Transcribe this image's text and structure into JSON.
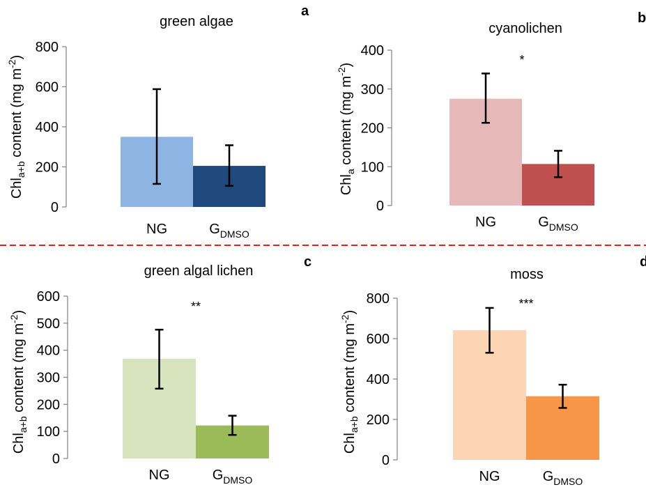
{
  "separator_color": "#e02020",
  "chart_data": [
    {
      "panel": "a",
      "type": "bar",
      "title": "green algae",
      "ylabel": "Chla+b content (mg m-2)",
      "ylabel_parts": {
        "base": "Chl",
        "sub": "a+b",
        "mid": " content (mg m",
        "sup": "-2",
        "end": ")"
      },
      "categories": [
        {
          "base": "NG",
          "sub": ""
        },
        {
          "base": "G",
          "sub": "DMSO"
        }
      ],
      "values": [
        350,
        205
      ],
      "errors": [
        [
          115,
          588
        ],
        [
          105,
          308
        ]
      ],
      "colors": [
        "#8eb4e3",
        "#1f497d"
      ],
      "ylim": [
        0,
        800
      ],
      "yticks": [
        0,
        200,
        400,
        600,
        800
      ],
      "significance": ""
    },
    {
      "panel": "b",
      "type": "bar",
      "title": "cyanolichen",
      "ylabel": "Chla content (mg m-2)",
      "ylabel_parts": {
        "base": "Chl",
        "sub": "a",
        "mid": " content (mg m",
        "sup": "-2",
        "end": ")"
      },
      "categories": [
        {
          "base": "NG",
          "sub": ""
        },
        {
          "base": "G",
          "sub": "DMSO"
        }
      ],
      "values": [
        275,
        107
      ],
      "errors": [
        [
          213,
          340
        ],
        [
          73,
          141
        ]
      ],
      "colors": [
        "#e6b9b8",
        "#c0504d"
      ],
      "ylim": [
        0,
        400
      ],
      "yticks": [
        0,
        100,
        200,
        300,
        400
      ],
      "significance": "*"
    },
    {
      "panel": "c",
      "type": "bar",
      "title": "green algal lichen",
      "ylabel": "Chla+b content (mg m-2)",
      "ylabel_parts": {
        "base": "Chl",
        "sub": "a+b",
        "mid": " content (mg m",
        "sup": "-2",
        "end": ")"
      },
      "categories": [
        {
          "base": "NG",
          "sub": ""
        },
        {
          "base": "G",
          "sub": "DMSO"
        }
      ],
      "values": [
        368,
        122
      ],
      "errors": [
        [
          258,
          476
        ],
        [
          87,
          158
        ]
      ],
      "colors": [
        "#d7e4bd",
        "#9bbb59"
      ],
      "ylim": [
        0,
        600
      ],
      "yticks": [
        0,
        100,
        200,
        300,
        400,
        500,
        600
      ],
      "significance": "**"
    },
    {
      "panel": "d",
      "type": "bar",
      "title": "moss",
      "ylabel": "Chla+b content (mg m-2)",
      "ylabel_parts": {
        "base": "Chl",
        "sub": "a+b",
        "mid": " content (mg m",
        "sup": "-2",
        "end": ")"
      },
      "categories": [
        {
          "base": "NG",
          "sub": ""
        },
        {
          "base": "G",
          "sub": "DMSO"
        }
      ],
      "values": [
        642,
        315
      ],
      "errors": [
        [
          530,
          752
        ],
        [
          257,
          372
        ]
      ],
      "colors": [
        "#fcd5b5",
        "#f79646"
      ],
      "ylim": [
        0,
        800
      ],
      "yticks": [
        0,
        200,
        400,
        600,
        800
      ],
      "significance": "***"
    }
  ]
}
